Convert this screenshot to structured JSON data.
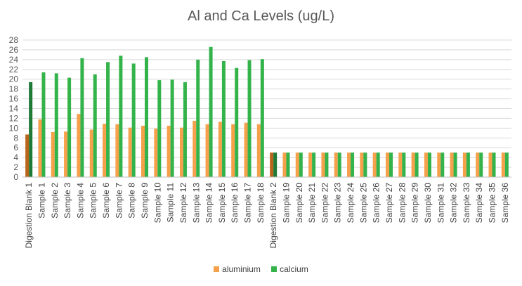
{
  "chart_data": {
    "type": "bar",
    "title": "Al and Ca Levels (ug/L)",
    "xlabel": "",
    "ylabel": "",
    "ylim": [
      0,
      28
    ],
    "yticks": [
      0,
      2,
      4,
      6,
      8,
      10,
      12,
      14,
      16,
      18,
      20,
      22,
      24,
      26,
      28
    ],
    "grid": true,
    "legend_position": "bottom",
    "categories": [
      "Digestion Blank 1",
      "Sample 1",
      "Sample 2",
      "Sample 3",
      "Sample 4",
      "Sample 5",
      "Sample 6",
      "Sample 7",
      "Sample 8",
      "Sample 9",
      "Sample 10",
      "Sample 11",
      "Sample 12",
      "Sample 13",
      "Sample 14",
      "Sample 15",
      "Sample 16",
      "Sample 17",
      "Sample 18",
      "Digestion Blank 2",
      "Sample 19",
      "Sample 20",
      "Sample 21",
      "Sample 22",
      "Sample 23",
      "Sample 24",
      "Sample 25",
      "Sample 26",
      "Sample 27",
      "Sample 28",
      "Sample 29",
      "Sample 30",
      "Sample 31",
      "Sample 32",
      "Sample 33",
      "Sample 34",
      "Sample 35",
      "Sample 36"
    ],
    "series": [
      {
        "name": "aluminium",
        "color": "#F5A04A",
        "values": [
          8.7,
          11.8,
          9.2,
          9.3,
          12.9,
          9.7,
          10.9,
          10.8,
          10.1,
          10.5,
          9.9,
          10.5,
          10.1,
          11.5,
          10.8,
          11.3,
          10.8,
          11.1,
          10.8,
          5.0,
          5.0,
          5.0,
          5.0,
          5.0,
          5.0,
          5.0,
          5.0,
          5.0,
          5.0,
          5.0,
          5.0,
          5.0,
          5.0,
          5.0,
          5.0,
          5.0,
          5.0,
          5.0
        ]
      },
      {
        "name": "calcium",
        "color": "#33B34A",
        "values": [
          19.4,
          21.4,
          21.2,
          20.3,
          24.3,
          21.0,
          23.5,
          24.8,
          23.2,
          24.5,
          19.8,
          19.9,
          19.4,
          24.0,
          26.6,
          23.7,
          22.3,
          23.9,
          24.1,
          5.0,
          5.0,
          5.0,
          5.0,
          5.0,
          5.0,
          5.0,
          5.0,
          5.0,
          5.0,
          5.0,
          5.0,
          5.0,
          5.0,
          5.0,
          5.0,
          5.0,
          5.0,
          5.0
        ]
      }
    ],
    "highlight_categories": [
      "Digestion Blank 1",
      "Digestion Blank 2"
    ],
    "highlight_colors": {
      "aluminium": "#B8651B",
      "calcium": "#1E7A36"
    }
  }
}
